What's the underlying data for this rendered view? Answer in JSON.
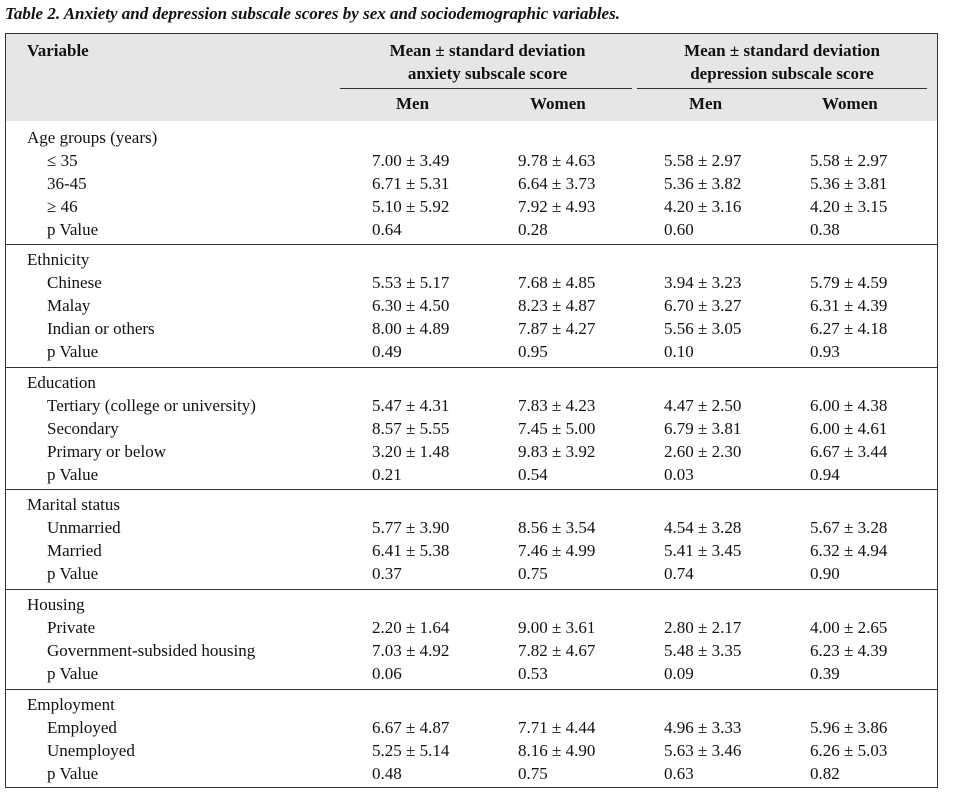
{
  "caption": "Table 2. Anxiety and depression subscale scores by sex and sociodemographic variables.",
  "header": {
    "variable": "Variable",
    "anxiety_line1": "Mean ± standard deviation",
    "anxiety_line2": "anxiety subscale score",
    "depression_line1": "Mean ± standard deviation",
    "depression_line2": "depression subscale score",
    "men": "Men",
    "women": "Women"
  },
  "groups": [
    {
      "title": "Age groups (years)",
      "rows": [
        {
          "label": "≤ 35",
          "anx_men": "7.00 ± 3.49",
          "anx_women": "9.78 ± 4.63",
          "dep_men": "5.58 ± 2.97",
          "dep_women": "5.58 ± 2.97"
        },
        {
          "label": "36-45",
          "anx_men": "6.71 ± 5.31",
          "anx_women": "6.64 ± 3.73",
          "dep_men": "5.36 ± 3.82",
          "dep_women": "5.36 ± 3.81"
        },
        {
          "label": "≥ 46",
          "anx_men": "5.10 ± 5.92",
          "anx_women": "7.92 ± 4.93",
          "dep_men": "4.20 ± 3.16",
          "dep_women": "4.20 ± 3.15"
        },
        {
          "label": "p Value",
          "anx_men": "0.64",
          "anx_women": "0.28",
          "dep_men": "0.60",
          "dep_women": "0.38"
        }
      ]
    },
    {
      "title": "Ethnicity",
      "rows": [
        {
          "label": "Chinese",
          "anx_men": "5.53 ± 5.17",
          "anx_women": "7.68 ± 4.85",
          "dep_men": "3.94 ± 3.23",
          "dep_women": "5.79 ± 4.59"
        },
        {
          "label": "Malay",
          "anx_men": "6.30 ± 4.50",
          "anx_women": "8.23 ± 4.87",
          "dep_men": "6.70 ± 3.27",
          "dep_women": "6.31 ± 4.39"
        },
        {
          "label": "Indian or others",
          "anx_men": "8.00 ± 4.89",
          "anx_women": "7.87 ± 4.27",
          "dep_men": "5.56 ± 3.05",
          "dep_women": "6.27 ± 4.18"
        },
        {
          "label": "p Value",
          "anx_men": "0.49",
          "anx_women": "0.95",
          "dep_men": "0.10",
          "dep_women": "0.93"
        }
      ]
    },
    {
      "title": "Education",
      "rows": [
        {
          "label": "Tertiary (college or university)",
          "anx_men": "5.47 ± 4.31",
          "anx_women": "7.83 ± 4.23",
          "dep_men": "4.47 ± 2.50",
          "dep_women": "6.00 ± 4.38"
        },
        {
          "label": "Secondary",
          "anx_men": "8.57 ± 5.55",
          "anx_women": "7.45 ± 5.00",
          "dep_men": "6.79 ± 3.81",
          "dep_women": "6.00 ± 4.61"
        },
        {
          "label": "Primary or below",
          "anx_men": "3.20 ± 1.48",
          "anx_women": "9.83 ± 3.92",
          "dep_men": "2.60 ± 2.30",
          "dep_women": "6.67 ± 3.44"
        },
        {
          "label": "p Value",
          "anx_men": "0.21",
          "anx_women": "0.54",
          "dep_men": "0.03",
          "dep_women": "0.94"
        }
      ]
    },
    {
      "title": "Marital status",
      "rows": [
        {
          "label": "Unmarried",
          "anx_men": "5.77 ± 3.90",
          "anx_women": "8.56 ± 3.54",
          "dep_men": "4.54 ± 3.28",
          "dep_women": "5.67 ± 3.28"
        },
        {
          "label": "Married",
          "anx_men": "6.41 ± 5.38",
          "anx_women": "7.46 ± 4.99",
          "dep_men": "5.41 ± 3.45",
          "dep_women": "6.32 ± 4.94"
        },
        {
          "label": "p Value",
          "anx_men": "0.37",
          "anx_women": "0.75",
          "dep_men": "0.74",
          "dep_women": "0.90"
        }
      ]
    },
    {
      "title": "Housing",
      "rows": [
        {
          "label": "Private",
          "anx_men": "2.20 ± 1.64",
          "anx_women": "9.00 ± 3.61",
          "dep_men": "2.80 ± 2.17",
          "dep_women": "4.00 ± 2.65"
        },
        {
          "label": "Government-subsided housing",
          "anx_men": "7.03 ± 4.92",
          "anx_women": "7.82 ± 4.67",
          "dep_men": "5.48 ± 3.35",
          "dep_women": "6.23 ± 4.39"
        },
        {
          "label": "p Value",
          "anx_men": "0.06",
          "anx_women": "0.53",
          "dep_men": "0.09",
          "dep_women": "0.39"
        }
      ]
    },
    {
      "title": "Employment",
      "rows": [
        {
          "label": "Employed",
          "anx_men": "6.67 ± 4.87",
          "anx_women": "7.71 ± 4.44",
          "dep_men": "4.96 ± 3.33",
          "dep_women": "5.96 ± 3.86"
        },
        {
          "label": "Unemployed",
          "anx_men": "5.25 ± 5.14",
          "anx_women": "8.16 ± 4.90",
          "dep_men": "5.63 ± 3.46",
          "dep_women": "6.26 ± 5.03"
        },
        {
          "label": "p Value",
          "anx_men": "0.48",
          "anx_women": "0.75",
          "dep_men": "0.63",
          "dep_women": "0.82"
        }
      ]
    }
  ]
}
